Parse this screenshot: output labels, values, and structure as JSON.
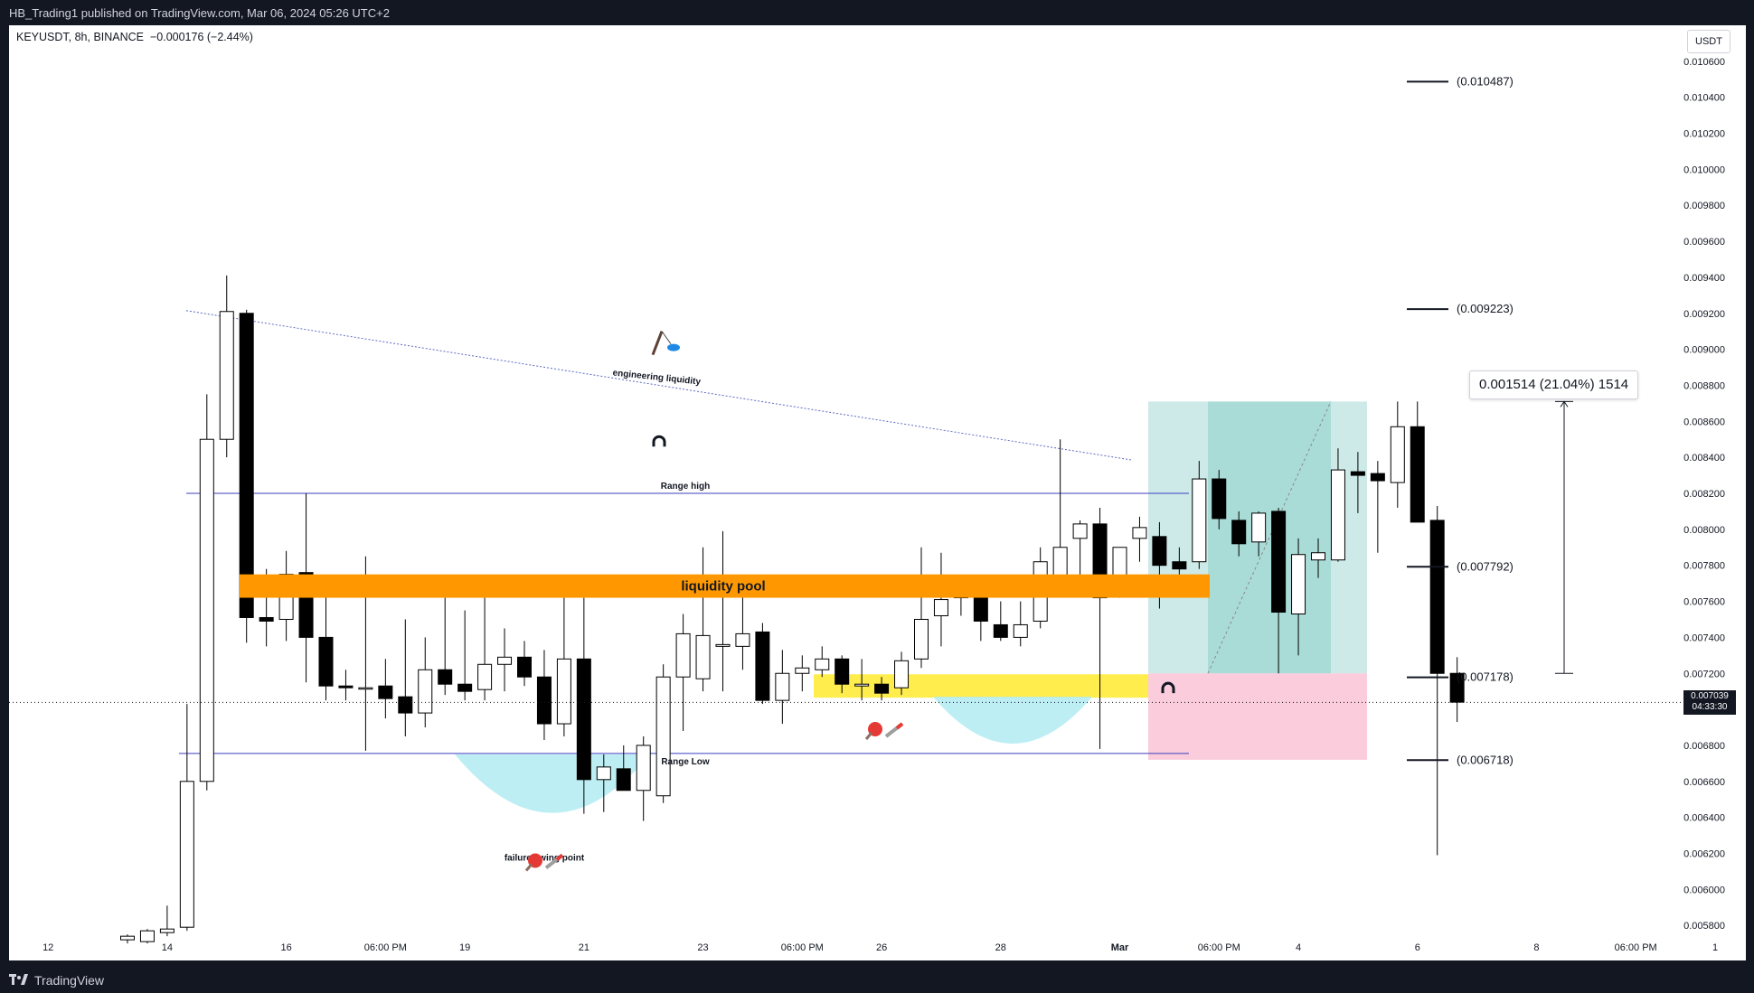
{
  "header": {
    "publisher_text": "HB_Trading1 published on TradingView.com, Mar 06, 2024 05:26 UTC+2"
  },
  "legend": {
    "symbol_text": "KEYUSDT, 8h, BINANCE",
    "change_text": "−0.000176 (−2.44%)"
  },
  "axis": {
    "unit_button": "USDT"
  },
  "footer": {
    "brand": "TradingView"
  },
  "current_price": {
    "value": "0.007039",
    "countdown": "04:33:30"
  },
  "measure": {
    "label": "0.001514 (21.04%) 1514"
  },
  "annotations": {
    "engineering": "engineering liquidity",
    "range_high": "Range high",
    "range_low": "Range Low",
    "liquidity_pool": "liquidity pool",
    "failure_swing": "failure swing point"
  },
  "levels": [
    {
      "label": "(0.010487)",
      "value": 0.010487
    },
    {
      "label": "(0.009223)",
      "value": 0.009223
    },
    {
      "label": "(0.007792)",
      "value": 0.007792
    },
    {
      "label": "(0.007178)",
      "value": 0.007178
    },
    {
      "label": "(0.006718)",
      "value": 0.006718
    }
  ],
  "colors": {
    "bull_body": "#ffffff",
    "bear_body": "#000000",
    "liquidity_pool": "#ff9800",
    "demand_zone": "#ffeb3b",
    "profit_zone": "#b2dfdb",
    "loss_zone": "#f8bbd0",
    "sweep_bowl": "#b2ebf2",
    "range_line": "#3f3fbf"
  },
  "chart_data": {
    "type": "candlestick",
    "symbol": "KEYUSDT",
    "interval": "8h",
    "exchange": "BINANCE",
    "y_ticks": [
      "0.010600",
      "0.010400",
      "0.010200",
      "0.010000",
      "0.009800",
      "0.009600",
      "0.009400",
      "0.009200",
      "0.009000",
      "0.008800",
      "0.008600",
      "0.008400",
      "0.008200",
      "0.008000",
      "0.007800",
      "0.007600",
      "0.007400",
      "0.007200",
      "0.007000",
      "0.006800",
      "0.006600",
      "0.006400",
      "0.006200",
      "0.006000",
      "0.005800"
    ],
    "ylim": [
      0.00565,
      0.01078
    ],
    "x_ticks": [
      {
        "label": "12",
        "bar": -4
      },
      {
        "label": "14",
        "bar": 2
      },
      {
        "label": "16",
        "bar": 8
      },
      {
        "label": "06:00 PM",
        "bar": 13
      },
      {
        "label": "19",
        "bar": 17
      },
      {
        "label": "21",
        "bar": 23
      },
      {
        "label": "23",
        "bar": 29
      },
      {
        "label": "06:00 PM",
        "bar": 34
      },
      {
        "label": "26",
        "bar": 38
      },
      {
        "label": "28",
        "bar": 44
      },
      {
        "label": "Mar",
        "bar": 50
      },
      {
        "label": "06:00 PM",
        "bar": 55
      },
      {
        "label": "4",
        "bar": 59
      },
      {
        "label": "6",
        "bar": 65
      },
      {
        "label": "8",
        "bar": 71
      },
      {
        "label": "06:00 PM",
        "bar": 76
      },
      {
        "label": "1",
        "bar": 80
      }
    ],
    "candles": [
      {
        "o": 0.00572,
        "h": 0.00575,
        "l": 0.0057,
        "c": 0.00574
      },
      {
        "o": 0.00571,
        "h": 0.00578,
        "l": 0.0057,
        "c": 0.00577
      },
      {
        "o": 0.00576,
        "h": 0.00591,
        "l": 0.00574,
        "c": 0.00578
      },
      {
        "o": 0.00579,
        "h": 0.00703,
        "l": 0.00577,
        "c": 0.0066
      },
      {
        "o": 0.0066,
        "h": 0.00875,
        "l": 0.00655,
        "c": 0.0085
      },
      {
        "o": 0.0085,
        "h": 0.00941,
        "l": 0.0084,
        "c": 0.00921
      },
      {
        "o": 0.0092,
        "h": 0.00922,
        "l": 0.00737,
        "c": 0.00751
      },
      {
        "o": 0.00751,
        "h": 0.00778,
        "l": 0.00735,
        "c": 0.00749
      },
      {
        "o": 0.0075,
        "h": 0.00788,
        "l": 0.00738,
        "c": 0.00775
      },
      {
        "o": 0.00776,
        "h": 0.0082,
        "l": 0.00715,
        "c": 0.0074
      },
      {
        "o": 0.0074,
        "h": 0.00765,
        "l": 0.00705,
        "c": 0.00713
      },
      {
        "o": 0.00713,
        "h": 0.00722,
        "l": 0.00705,
        "c": 0.00712
      },
      {
        "o": 0.00712,
        "h": 0.00785,
        "l": 0.00677,
        "c": 0.00712
      },
      {
        "o": 0.00713,
        "h": 0.00728,
        "l": 0.00695,
        "c": 0.00706
      },
      {
        "o": 0.00707,
        "h": 0.0075,
        "l": 0.00685,
        "c": 0.00698
      },
      {
        "o": 0.00698,
        "h": 0.0074,
        "l": 0.0069,
        "c": 0.00722
      },
      {
        "o": 0.00722,
        "h": 0.00762,
        "l": 0.00708,
        "c": 0.00714
      },
      {
        "o": 0.00714,
        "h": 0.00755,
        "l": 0.00705,
        "c": 0.0071
      },
      {
        "o": 0.00711,
        "h": 0.00762,
        "l": 0.00705,
        "c": 0.00725
      },
      {
        "o": 0.00725,
        "h": 0.00745,
        "l": 0.0071,
        "c": 0.00729
      },
      {
        "o": 0.00729,
        "h": 0.00738,
        "l": 0.00713,
        "c": 0.00718
      },
      {
        "o": 0.00718,
        "h": 0.00733,
        "l": 0.00683,
        "c": 0.00692
      },
      {
        "o": 0.00692,
        "h": 0.00762,
        "l": 0.00685,
        "c": 0.00728
      },
      {
        "o": 0.00728,
        "h": 0.00762,
        "l": 0.00642,
        "c": 0.00661
      },
      {
        "o": 0.00661,
        "h": 0.00675,
        "l": 0.00643,
        "c": 0.00668
      },
      {
        "o": 0.00667,
        "h": 0.0068,
        "l": 0.00655,
        "c": 0.00655
      },
      {
        "o": 0.00655,
        "h": 0.00685,
        "l": 0.00638,
        "c": 0.0068
      },
      {
        "o": 0.00652,
        "h": 0.00725,
        "l": 0.00648,
        "c": 0.00718
      },
      {
        "o": 0.00718,
        "h": 0.00753,
        "l": 0.00688,
        "c": 0.00742
      },
      {
        "o": 0.00717,
        "h": 0.0079,
        "l": 0.0071,
        "c": 0.00741
      },
      {
        "o": 0.00735,
        "h": 0.00799,
        "l": 0.0071,
        "c": 0.00736
      },
      {
        "o": 0.00735,
        "h": 0.00763,
        "l": 0.00722,
        "c": 0.00742
      },
      {
        "o": 0.00743,
        "h": 0.00748,
        "l": 0.00703,
        "c": 0.00705
      },
      {
        "o": 0.00705,
        "h": 0.00733,
        "l": 0.00692,
        "c": 0.0072
      },
      {
        "o": 0.0072,
        "h": 0.0073,
        "l": 0.0071,
        "c": 0.00723
      },
      {
        "o": 0.00722,
        "h": 0.00735,
        "l": 0.00718,
        "c": 0.00728
      },
      {
        "o": 0.00728,
        "h": 0.0073,
        "l": 0.00709,
        "c": 0.00714
      },
      {
        "o": 0.00713,
        "h": 0.00728,
        "l": 0.00705,
        "c": 0.00714
      },
      {
        "o": 0.00714,
        "h": 0.00718,
        "l": 0.00705,
        "c": 0.00709
      },
      {
        "o": 0.00712,
        "h": 0.00732,
        "l": 0.00708,
        "c": 0.00727
      },
      {
        "o": 0.00728,
        "h": 0.0079,
        "l": 0.00723,
        "c": 0.0075
      },
      {
        "o": 0.00752,
        "h": 0.00787,
        "l": 0.00735,
        "c": 0.00761
      },
      {
        "o": 0.00762,
        "h": 0.00765,
        "l": 0.00752,
        "c": 0.00765
      },
      {
        "o": 0.00764,
        "h": 0.00768,
        "l": 0.00738,
        "c": 0.00749
      },
      {
        "o": 0.00747,
        "h": 0.0076,
        "l": 0.00738,
        "c": 0.0074
      },
      {
        "o": 0.0074,
        "h": 0.0076,
        "l": 0.00735,
        "c": 0.00747
      },
      {
        "o": 0.00749,
        "h": 0.0079,
        "l": 0.00745,
        "c": 0.00782
      },
      {
        "o": 0.0077,
        "h": 0.0085,
        "l": 0.00766,
        "c": 0.0079
      },
      {
        "o": 0.00795,
        "h": 0.00805,
        "l": 0.0077,
        "c": 0.00803
      },
      {
        "o": 0.00803,
        "h": 0.00812,
        "l": 0.00678,
        "c": 0.00762
      },
      {
        "o": 0.00763,
        "h": 0.0079,
        "l": 0.00762,
        "c": 0.0079
      },
      {
        "o": 0.00795,
        "h": 0.00807,
        "l": 0.00782,
        "c": 0.00801
      },
      {
        "o": 0.00796,
        "h": 0.00804,
        "l": 0.00756,
        "c": 0.0078
      },
      {
        "o": 0.00782,
        "h": 0.0079,
        "l": 0.0077,
        "c": 0.00778
      },
      {
        "o": 0.00782,
        "h": 0.00838,
        "l": 0.00778,
        "c": 0.00828
      },
      {
        "o": 0.00828,
        "h": 0.00833,
        "l": 0.008,
        "c": 0.00806
      },
      {
        "o": 0.00805,
        "h": 0.0081,
        "l": 0.00785,
        "c": 0.00792
      },
      {
        "o": 0.00793,
        "h": 0.0081,
        "l": 0.00785,
        "c": 0.00809
      },
      {
        "o": 0.0081,
        "h": 0.00812,
        "l": 0.0072,
        "c": 0.00754
      },
      {
        "o": 0.00753,
        "h": 0.00795,
        "l": 0.0073,
        "c": 0.00786
      },
      {
        "o": 0.00783,
        "h": 0.00795,
        "l": 0.00773,
        "c": 0.00787
      },
      {
        "o": 0.00783,
        "h": 0.00845,
        "l": 0.00782,
        "c": 0.00833
      },
      {
        "o": 0.00832,
        "h": 0.00843,
        "l": 0.00809,
        "c": 0.0083
      },
      {
        "o": 0.00831,
        "h": 0.00838,
        "l": 0.00787,
        "c": 0.00827
      },
      {
        "o": 0.00826,
        "h": 0.00871,
        "l": 0.00812,
        "c": 0.00857
      },
      {
        "o": 0.00857,
        "h": 0.00871,
        "l": 0.00804,
        "c": 0.00804
      },
      {
        "o": 0.00805,
        "h": 0.00813,
        "l": 0.00619,
        "c": 0.0072
      },
      {
        "o": 0.0072,
        "h": 0.00729,
        "l": 0.00693,
        "c": 0.00704
      }
    ]
  }
}
